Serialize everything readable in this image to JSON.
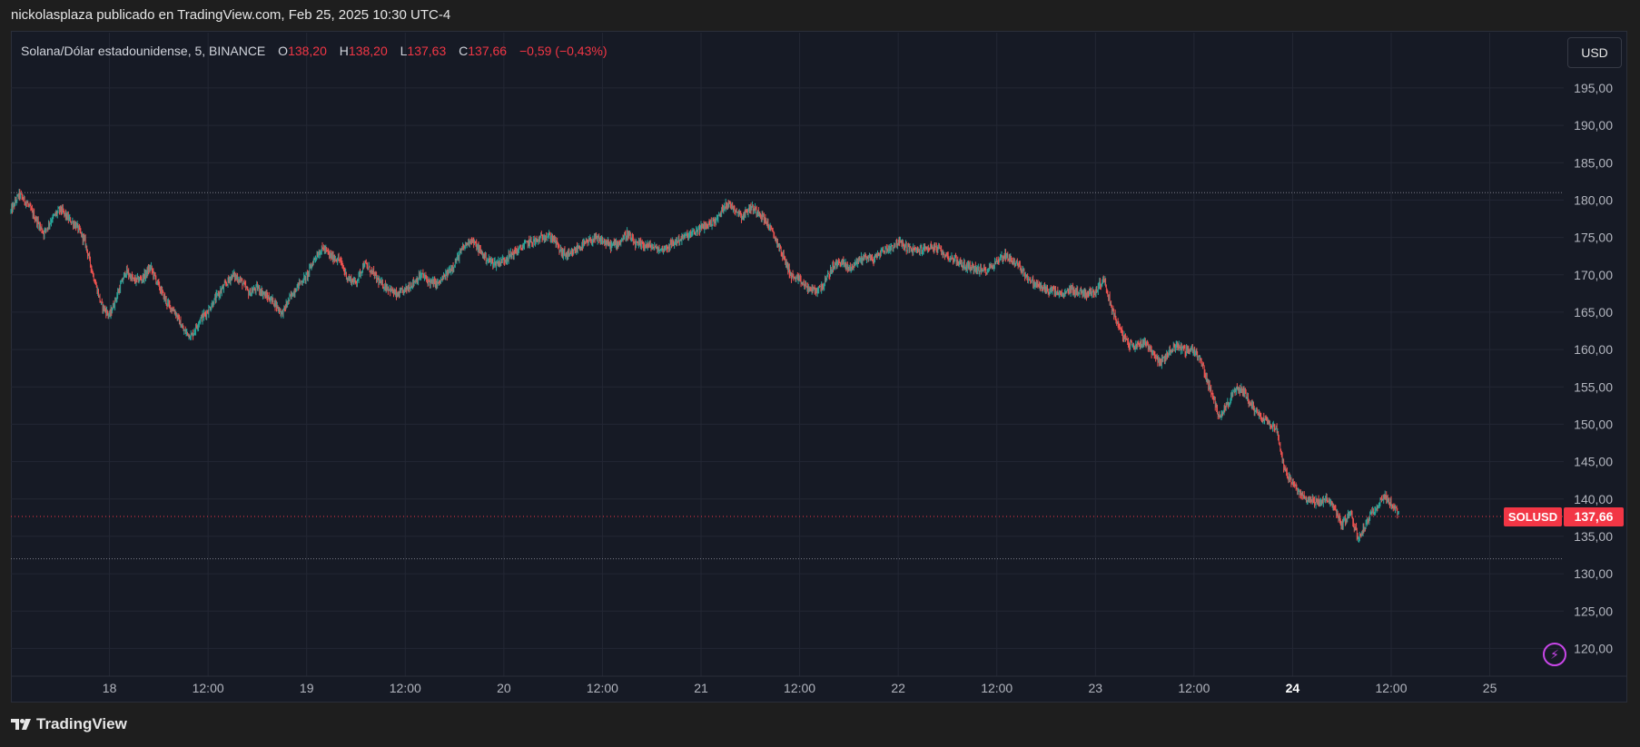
{
  "header": {
    "publish_line": "nickolasplaza publicado en TradingView.com, Feb 25, 2025 10:30 UTC-4"
  },
  "legend": {
    "symbol_line": "Solana/Dólar estadounidense, 5, BINANCE",
    "o_label": "O",
    "o_value": "138,20",
    "h_label": "H",
    "h_value": "138,20",
    "l_label": "L",
    "l_value": "137,63",
    "c_label": "C",
    "c_value": "137,66",
    "change": "−0,59 (−0,43%)"
  },
  "currency_button": "USD",
  "footer": {
    "brand": "TradingView"
  },
  "colors": {
    "background": "#161a25",
    "up": "#26a69a",
    "down": "#ef5350",
    "price_tag": "#f23645",
    "grid": "#232734",
    "axis_text": "#b2b5be"
  },
  "chart_data": {
    "type": "candlestick",
    "symbol": "SOLUSD",
    "last_price": 137.66,
    "last_price_label": "137,66",
    "y_ticks": [
      "120,00",
      "125,00",
      "130,00",
      "135,00",
      "140,00",
      "145,00",
      "150,00",
      "155,00",
      "160,00",
      "165,00",
      "170,00",
      "175,00",
      "180,00",
      "185,00",
      "190,00",
      "195,00"
    ],
    "y_tick_values": [
      120,
      125,
      130,
      135,
      140,
      145,
      150,
      155,
      160,
      165,
      170,
      175,
      180,
      185,
      190,
      195
    ],
    "ylim": [
      117.5,
      199
    ],
    "x_ticks": [
      "18",
      "12:00",
      "19",
      "12:00",
      "20",
      "12:00",
      "21",
      "12:00",
      "22",
      "12:00",
      "23",
      "12:00",
      "24",
      "12:00",
      "25"
    ],
    "x_tick_hours": [
      12,
      24,
      36,
      48,
      60,
      72,
      84,
      96,
      108,
      120,
      132,
      144,
      156,
      168,
      180
    ],
    "bold_x_tick": "24",
    "xlim_hours": [
      0,
      189
    ],
    "horizontal_levels": [
      181.0,
      132.0
    ],
    "price_path": [
      [
        0,
        178.5
      ],
      [
        1,
        180.8
      ],
      [
        2,
        179.5
      ],
      [
        3,
        177.5
      ],
      [
        4,
        175.6
      ],
      [
        5,
        177.5
      ],
      [
        6,
        178.8
      ],
      [
        7,
        177.5
      ],
      [
        8,
        176.5
      ],
      [
        9,
        174.5
      ],
      [
        10,
        170.0
      ],
      [
        11,
        166.0
      ],
      [
        12,
        164.5
      ],
      [
        13,
        167.5
      ],
      [
        14,
        170.5
      ],
      [
        15,
        169.2
      ],
      [
        16,
        169.5
      ],
      [
        17,
        171.0
      ],
      [
        18,
        168.5
      ],
      [
        19,
        166.2
      ],
      [
        20,
        165.0
      ],
      [
        21,
        162.5
      ],
      [
        22,
        161.8
      ],
      [
        23,
        164.0
      ],
      [
        24,
        165.2
      ],
      [
        25,
        167.0
      ],
      [
        26,
        168.5
      ],
      [
        27,
        170.0
      ],
      [
        28,
        169.2
      ],
      [
        29,
        167.5
      ],
      [
        30,
        168.3
      ],
      [
        31,
        167.2
      ],
      [
        32,
        166.4
      ],
      [
        33,
        164.8
      ],
      [
        34,
        167.0
      ],
      [
        35,
        168.7
      ],
      [
        36,
        169.8
      ],
      [
        37,
        172.3
      ],
      [
        38,
        173.6
      ],
      [
        39,
        172.4
      ],
      [
        40,
        172.0
      ],
      [
        41,
        169.5
      ],
      [
        42,
        169.0
      ],
      [
        43,
        171.5
      ],
      [
        44,
        170.3
      ],
      [
        45,
        168.8
      ],
      [
        46,
        168.2
      ],
      [
        47,
        167.2
      ],
      [
        48,
        168.0
      ],
      [
        49,
        169.0
      ],
      [
        50,
        170.0
      ],
      [
        51,
        169.0
      ],
      [
        52,
        168.8
      ],
      [
        53,
        170.0
      ],
      [
        54,
        171.5
      ],
      [
        55,
        173.5
      ],
      [
        56,
        174.8
      ],
      [
        57,
        173.3
      ],
      [
        58,
        172.0
      ],
      [
        59,
        171.5
      ],
      [
        60,
        172.0
      ],
      [
        61,
        172.8
      ],
      [
        62,
        173.5
      ],
      [
        63,
        174.4
      ],
      [
        64,
        174.5
      ],
      [
        65,
        175.3
      ],
      [
        66,
        174.9
      ],
      [
        67,
        173.0
      ],
      [
        68,
        172.5
      ],
      [
        69,
        173.6
      ],
      [
        70,
        174.2
      ],
      [
        71,
        174.8
      ],
      [
        72,
        174.5
      ],
      [
        73,
        173.9
      ],
      [
        74,
        174.3
      ],
      [
        75,
        175.5
      ],
      [
        76,
        174.0
      ],
      [
        77,
        174.0
      ],
      [
        78,
        173.8
      ],
      [
        79,
        173.3
      ],
      [
        80,
        173.8
      ],
      [
        81,
        174.5
      ],
      [
        82,
        175.1
      ],
      [
        83,
        175.5
      ],
      [
        84,
        176.3
      ],
      [
        85,
        176.8
      ],
      [
        86,
        177.5
      ],
      [
        87,
        179.6
      ],
      [
        88,
        179.0
      ],
      [
        89,
        177.8
      ],
      [
        90,
        179.0
      ],
      [
        91,
        178.5
      ],
      [
        92,
        177.0
      ],
      [
        93,
        175.0
      ],
      [
        94,
        172.5
      ],
      [
        95,
        169.8
      ],
      [
        96,
        169.2
      ],
      [
        97,
        168.2
      ],
      [
        98,
        167.8
      ],
      [
        99,
        168.8
      ],
      [
        100,
        171.0
      ],
      [
        101,
        171.8
      ],
      [
        102,
        170.8
      ],
      [
        103,
        171.8
      ],
      [
        104,
        172.5
      ],
      [
        105,
        172.0
      ],
      [
        106,
        173.2
      ],
      [
        107,
        173.6
      ],
      [
        108,
        174.4
      ],
      [
        109,
        173.7
      ],
      [
        110,
        173.2
      ],
      [
        111,
        173.4
      ],
      [
        112,
        173.8
      ],
      [
        113,
        173.3
      ],
      [
        114,
        172.5
      ],
      [
        115,
        172.0
      ],
      [
        116,
        171.2
      ],
      [
        117,
        171.0
      ],
      [
        118,
        170.5
      ],
      [
        119,
        170.8
      ],
      [
        120,
        171.8
      ],
      [
        121,
        172.7
      ],
      [
        122,
        171.8
      ],
      [
        123,
        170.8
      ],
      [
        124,
        169.2
      ],
      [
        125,
        168.6
      ],
      [
        126,
        168.0
      ],
      [
        127,
        167.8
      ],
      [
        128,
        167.2
      ],
      [
        129,
        168.1
      ],
      [
        130,
        167.7
      ],
      [
        131,
        167.5
      ],
      [
        132,
        167.8
      ],
      [
        133,
        169.5
      ],
      [
        134,
        165.5
      ],
      [
        135,
        162.6
      ],
      [
        136,
        160.7
      ],
      [
        137,
        160.5
      ],
      [
        138,
        161.2
      ],
      [
        139,
        159.5
      ],
      [
        140,
        158.2
      ],
      [
        141,
        159.8
      ],
      [
        142,
        160.6
      ],
      [
        143,
        159.8
      ],
      [
        144,
        160.0
      ],
      [
        145,
        158.0
      ],
      [
        146,
        154.5
      ],
      [
        147,
        151.2
      ],
      [
        148,
        152.5
      ],
      [
        149,
        154.5
      ],
      [
        150,
        154.6
      ],
      [
        151,
        152.5
      ],
      [
        152,
        151.2
      ],
      [
        153,
        150.4
      ],
      [
        154,
        149.5
      ],
      [
        155,
        144.0
      ],
      [
        156,
        142.0
      ],
      [
        157,
        140.5
      ],
      [
        158,
        140.0
      ],
      [
        159,
        139.5
      ],
      [
        160,
        140.0
      ],
      [
        161,
        139.0
      ],
      [
        162,
        136.5
      ],
      [
        163,
        138.2
      ],
      [
        164,
        134.7
      ],
      [
        165,
        136.8
      ],
      [
        166,
        138.7
      ],
      [
        167,
        140.4
      ],
      [
        168,
        139.4
      ],
      [
        169,
        137.7
      ]
    ]
  }
}
